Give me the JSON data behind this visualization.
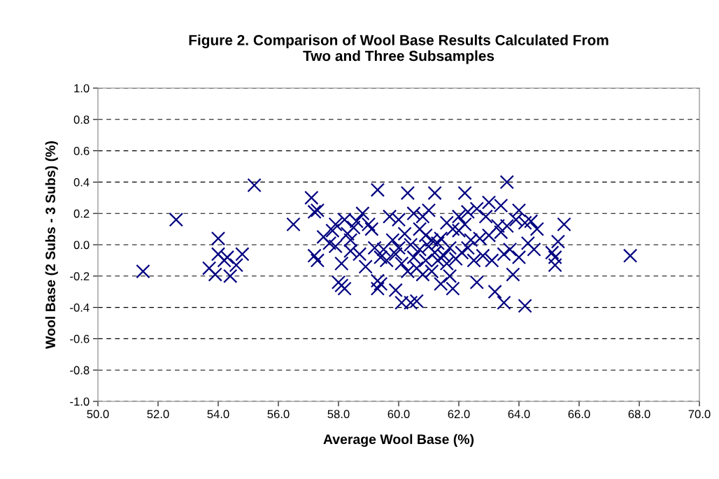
{
  "chart_data": {
    "type": "scatter",
    "title": "Figure 2. Comparison of Wool Base Results Calculated From\nTwo and Three Subsamples",
    "xlabel": "Average Wool Base (%)",
    "ylabel": "Wool Base (2 Subs - 3 Subs) (%)",
    "xlim": [
      50,
      70
    ],
    "ylim": [
      -1,
      1
    ],
    "xticks": [
      {
        "value": 50,
        "label": "50.0"
      },
      {
        "value": 52,
        "label": "52.0"
      },
      {
        "value": 54,
        "label": "54.0"
      },
      {
        "value": 56,
        "label": "56.0"
      },
      {
        "value": 58,
        "label": "58.0"
      },
      {
        "value": 60,
        "label": "60.0"
      },
      {
        "value": 62,
        "label": "62.0"
      },
      {
        "value": 64,
        "label": "64.0"
      },
      {
        "value": 66,
        "label": "66.0"
      },
      {
        "value": 68,
        "label": "68.0"
      },
      {
        "value": 70,
        "label": "70.0"
      }
    ],
    "yticks": [
      {
        "value": -1,
        "label": "-1.0"
      },
      {
        "value": -0.8,
        "label": "-0.8"
      },
      {
        "value": -0.6,
        "label": "-0.6"
      },
      {
        "value": -0.4,
        "label": "-0.4"
      },
      {
        "value": -0.2,
        "label": "-0.2"
      },
      {
        "value": 0,
        "label": "0.0"
      },
      {
        "value": 0.2,
        "label": "0.2"
      },
      {
        "value": 0.4,
        "label": "0.4"
      },
      {
        "value": 0.6,
        "label": "0.6"
      },
      {
        "value": 0.8,
        "label": "0.8"
      },
      {
        "value": 1,
        "label": "1.0"
      }
    ],
    "grid": "y",
    "marker": "cross",
    "legend": false,
    "series": [
      {
        "color": "#000080",
        "x": [
          51.5,
          52.6,
          55.2,
          53.7,
          53.9,
          54.0,
          54.0,
          54.2,
          54.4,
          54.6,
          54.8,
          54.3,
          56.5,
          57.1,
          57.3,
          57.2,
          57.2,
          57.3,
          57.5,
          57.7,
          57.8,
          57.9,
          57.9,
          58.0,
          58.1,
          58.2,
          58.2,
          58.3,
          58.1,
          58.4,
          58.4,
          58.5,
          58.6,
          58.7,
          58.8,
          58.9,
          59.0,
          59.1,
          59.2,
          59.3,
          59.3,
          59.3,
          59.4,
          59.4,
          59.5,
          59.6,
          59.7,
          59.8,
          59.9,
          59.9,
          60.0,
          60.0,
          60.1,
          60.1,
          60.2,
          60.3,
          60.3,
          60.4,
          60.4,
          60.5,
          60.5,
          60.6,
          60.6,
          60.7,
          60.7,
          60.8,
          60.8,
          60.9,
          60.9,
          61.0,
          61.0,
          61.1,
          61.1,
          61.2,
          61.2,
          61.3,
          61.3,
          61.4,
          61.4,
          61.5,
          61.6,
          61.6,
          61.7,
          61.7,
          61.8,
          61.8,
          61.9,
          62.0,
          62.0,
          62.1,
          62.2,
          62.2,
          62.3,
          62.3,
          62.4,
          62.5,
          62.6,
          62.6,
          62.7,
          62.8,
          62.9,
          63.0,
          63.0,
          63.1,
          63.2,
          63.3,
          63.4,
          63.4,
          63.5,
          63.5,
          63.6,
          63.6,
          63.7,
          63.8,
          63.9,
          64.0,
          64.0,
          64.2,
          64.2,
          64.3,
          64.4,
          64.5,
          64.6,
          65.1,
          65.2,
          65.2,
          65.3,
          65.5,
          67.7
        ],
        "values": [
          -0.17,
          0.16,
          0.38,
          -0.15,
          -0.19,
          0.04,
          -0.06,
          -0.1,
          -0.2,
          -0.13,
          -0.06,
          -0.08,
          0.13,
          0.3,
          0.22,
          0.21,
          -0.07,
          -0.1,
          0.05,
          0.01,
          0.09,
          0.13,
          -0.01,
          -0.24,
          -0.26,
          -0.28,
          0.16,
          0.07,
          -0.12,
          -0.04,
          0.03,
          0.11,
          0.15,
          -0.06,
          0.2,
          -0.14,
          0.13,
          0.1,
          -0.02,
          0.35,
          -0.23,
          -0.28,
          -0.25,
          -0.08,
          -0.03,
          -0.1,
          0.18,
          0.03,
          -0.06,
          -0.29,
          0.16,
          -0.02,
          -0.37,
          -0.12,
          0.07,
          0.33,
          -0.17,
          -0.37,
          0.0,
          0.2,
          -0.08,
          -0.15,
          -0.36,
          0.1,
          -0.03,
          0.18,
          -0.19,
          0.06,
          -0.1,
          -0.01,
          0.22,
          -0.17,
          0.03,
          0.33,
          -0.05,
          0.01,
          -0.1,
          0.04,
          -0.25,
          -0.07,
          0.14,
          -0.12,
          -0.02,
          -0.2,
          -0.28,
          0.1,
          -0.09,
          0.09,
          0.18,
          -0.05,
          0.33,
          0.13,
          0.21,
          -0.02,
          0.03,
          -0.1,
          0.23,
          -0.24,
          0.04,
          -0.07,
          0.18,
          0.27,
          0.06,
          -0.1,
          -0.3,
          0.12,
          0.25,
          0.08,
          -0.37,
          -0.06,
          0.4,
          0.12,
          -0.03,
          -0.19,
          0.16,
          0.22,
          -0.08,
          -0.39,
          0.14,
          0.01,
          0.15,
          -0.03,
          0.1,
          -0.05,
          -0.08,
          -0.13,
          0.02,
          0.13,
          -0.07
        ]
      }
    ]
  }
}
